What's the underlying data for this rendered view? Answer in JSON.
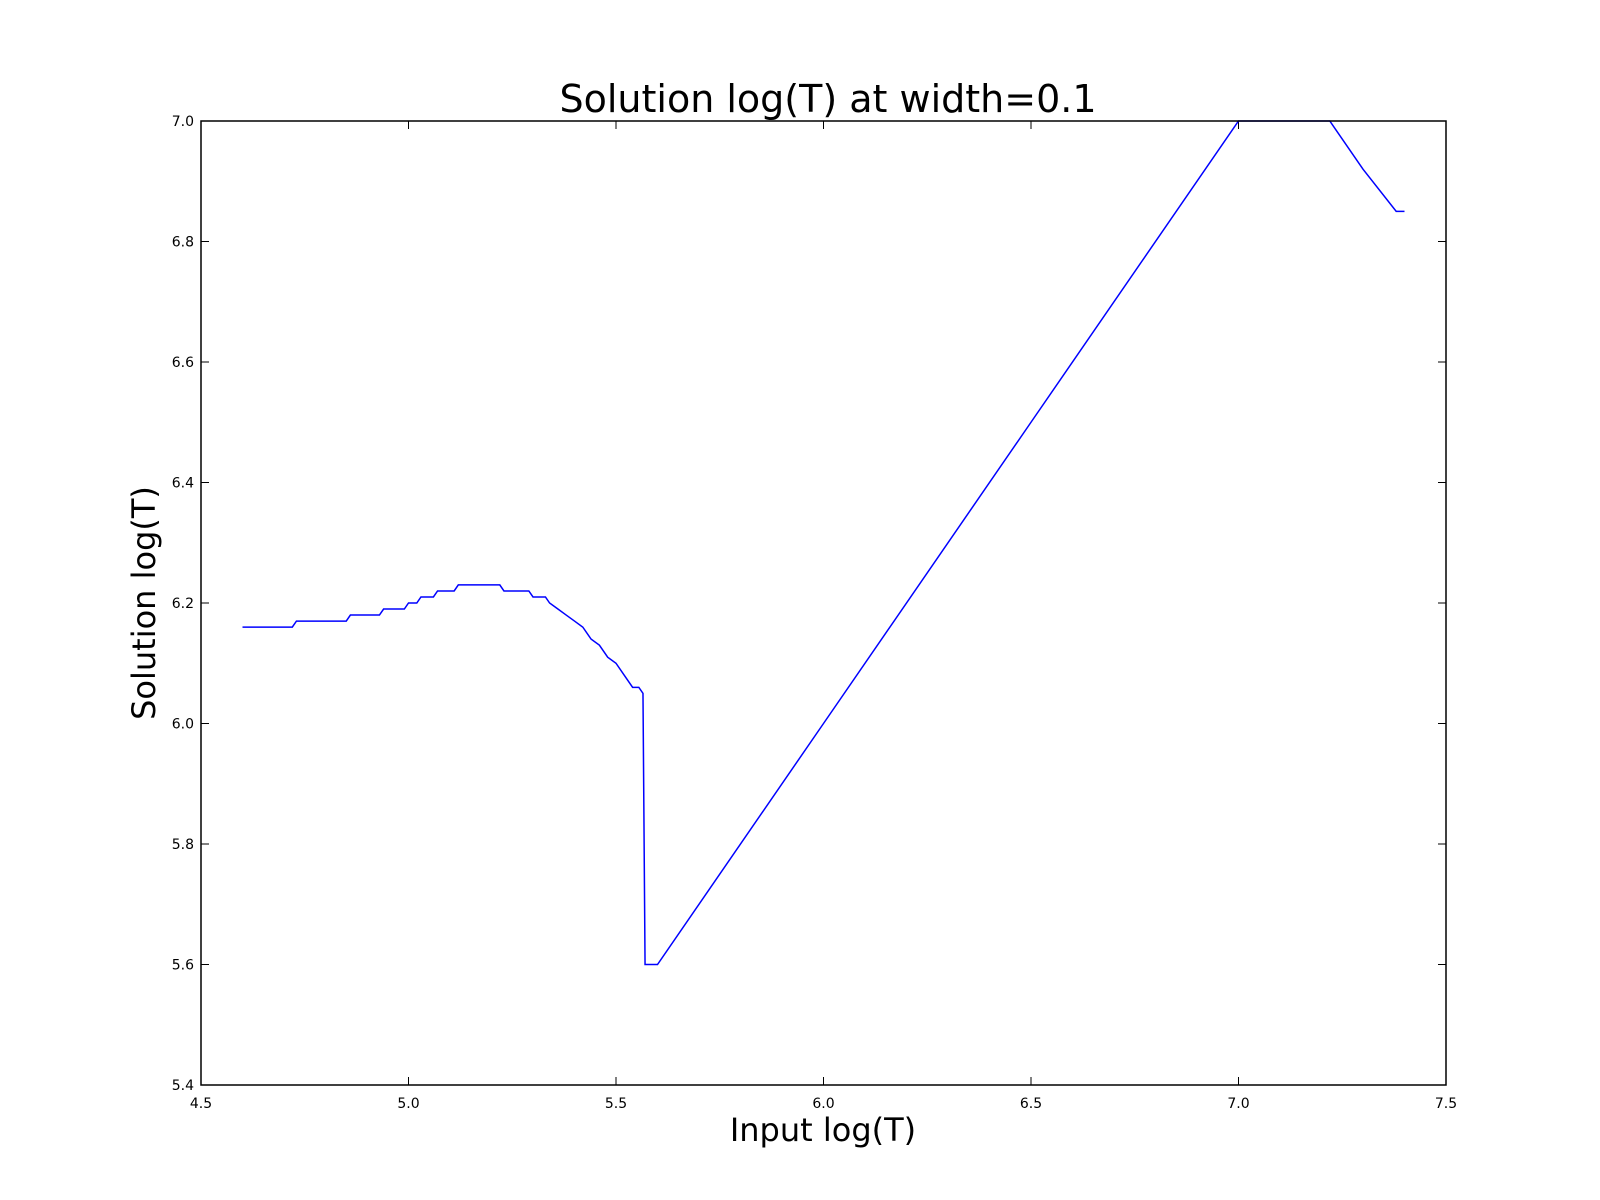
{
  "chart_data": {
    "type": "line",
    "title": "Solution log(T) at width=0.1",
    "xlabel": "Input log(T)",
    "ylabel": "Solution log(T)",
    "xlim": [
      4.5,
      7.5
    ],
    "ylim": [
      5.4,
      7.0
    ],
    "xticks": [
      4.5,
      5.0,
      5.5,
      6.0,
      6.5,
      7.0,
      7.5
    ],
    "xtick_labels": [
      "4.5",
      "5.0",
      "5.5",
      "6.0",
      "6.5",
      "7.0",
      "7.5"
    ],
    "yticks": [
      5.4,
      5.6,
      5.8,
      6.0,
      6.2,
      6.4,
      6.6,
      6.8,
      7.0
    ],
    "ytick_labels": [
      "5.4",
      "5.6",
      "5.8",
      "6.0",
      "6.2",
      "6.4",
      "6.6",
      "6.8",
      "7.0"
    ],
    "grid": false,
    "series": [
      {
        "color": "#0000ff",
        "x": [
          4.6,
          4.72,
          4.73,
          4.85,
          4.86,
          4.93,
          4.94,
          4.99,
          5.0,
          5.02,
          5.03,
          5.06,
          5.07,
          5.11,
          5.12,
          5.22,
          5.23,
          5.29,
          5.3,
          5.33,
          5.34,
          5.36,
          5.38,
          5.4,
          5.42,
          5.44,
          5.46,
          5.48,
          5.5,
          5.52,
          5.54,
          5.555,
          5.565,
          5.57,
          5.6,
          6.0,
          6.5,
          7.0,
          7.22,
          7.3,
          7.38,
          7.4
        ],
        "y": [
          6.16,
          6.16,
          6.17,
          6.17,
          6.18,
          6.18,
          6.19,
          6.19,
          6.2,
          6.2,
          6.21,
          6.21,
          6.22,
          6.22,
          6.23,
          6.23,
          6.22,
          6.22,
          6.21,
          6.21,
          6.2,
          6.19,
          6.18,
          6.17,
          6.16,
          6.14,
          6.13,
          6.11,
          6.1,
          6.08,
          6.06,
          6.06,
          6.05,
          5.6,
          5.6,
          6.0,
          6.5,
          7.0,
          7.0,
          6.92,
          6.85,
          6.85
        ]
      }
    ]
  }
}
